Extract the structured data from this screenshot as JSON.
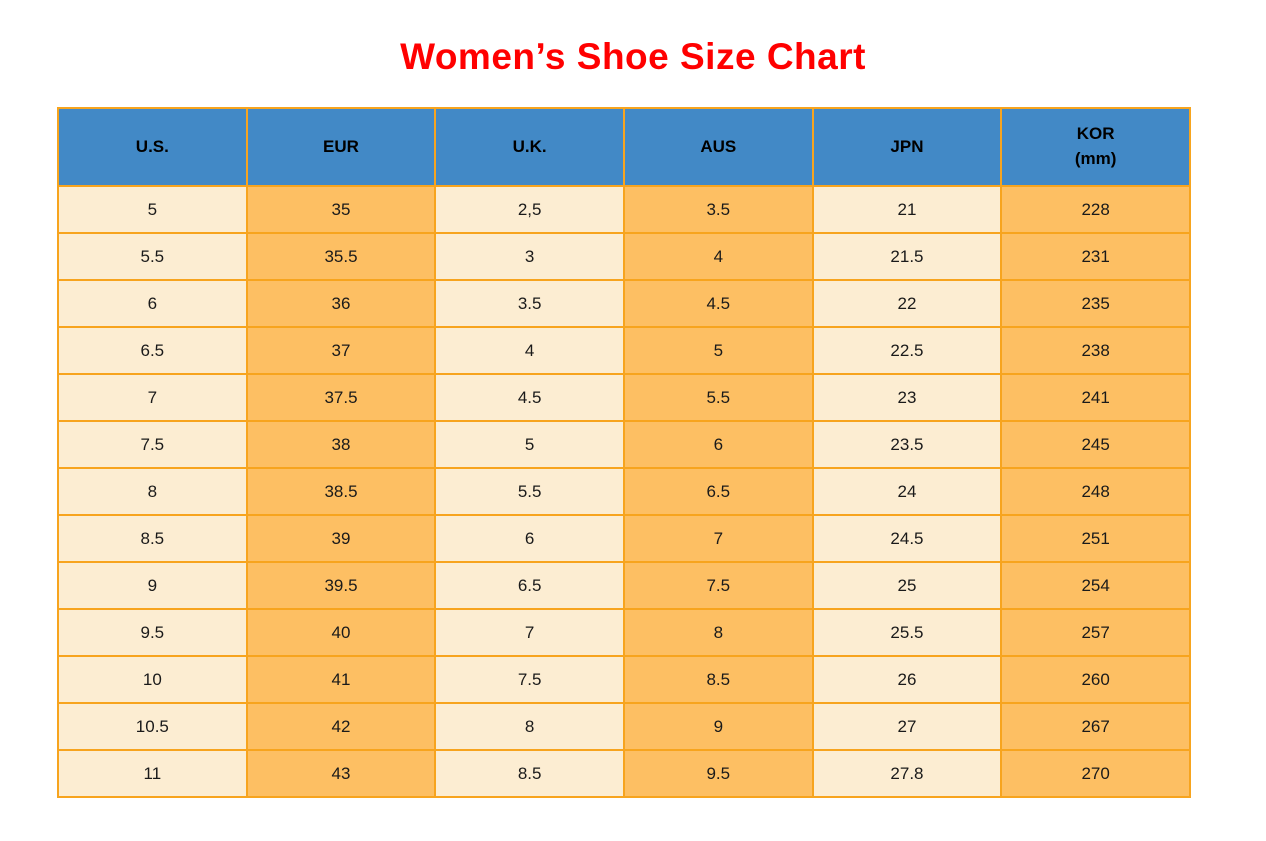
{
  "title": "Women’s Shoe Size Chart",
  "colors": {
    "title_red": "#FF0000",
    "header_blue": "#4289C6",
    "cell_cream": "#FCEDD2",
    "cell_orange": "#FDBF63",
    "border_orange": "#F7A41E",
    "text_dark": "#1A1A1A"
  },
  "table": {
    "headers": [
      {
        "label": "U.S."
      },
      {
        "label": "EUR"
      },
      {
        "label": "U.K."
      },
      {
        "label": "AUS"
      },
      {
        "label": "JPN"
      },
      {
        "label": "KOR",
        "sublabel": "(mm)"
      }
    ],
    "rows": [
      [
        "5",
        "35",
        "2,5",
        "3.5",
        "21",
        "228"
      ],
      [
        "5.5",
        "35.5",
        "3",
        "4",
        "21.5",
        "231"
      ],
      [
        "6",
        "36",
        "3.5",
        "4.5",
        "22",
        "235"
      ],
      [
        "6.5",
        "37",
        "4",
        "5",
        "22.5",
        "238"
      ],
      [
        "7",
        "37.5",
        "4.5",
        "5.5",
        "23",
        "241"
      ],
      [
        "7.5",
        "38",
        "5",
        "6",
        "23.5",
        "245"
      ],
      [
        "8",
        "38.5",
        "5.5",
        "6.5",
        "24",
        "248"
      ],
      [
        "8.5",
        "39",
        "6",
        "7",
        "24.5",
        "251"
      ],
      [
        "9",
        "39.5",
        "6.5",
        "7.5",
        "25",
        "254"
      ],
      [
        "9.5",
        "40",
        "7",
        "8",
        "25.5",
        "257"
      ],
      [
        "10",
        "41",
        "7.5",
        "8.5",
        "26",
        "260"
      ],
      [
        "10.5",
        "42",
        "8",
        "9",
        "27",
        "267"
      ],
      [
        "11",
        "43",
        "8.5",
        "9.5",
        "27.8",
        "270"
      ]
    ]
  },
  "chart_data": {
    "type": "table",
    "title": "Women’s Shoe Size Chart",
    "columns": [
      "U.S.",
      "EUR",
      "U.K.",
      "AUS",
      "JPN",
      "KOR (mm)"
    ],
    "rows": [
      [
        "5",
        "35",
        "2,5",
        "3.5",
        "21",
        "228"
      ],
      [
        "5.5",
        "35.5",
        "3",
        "4",
        "21.5",
        "231"
      ],
      [
        "6",
        "36",
        "3.5",
        "4.5",
        "22",
        "235"
      ],
      [
        "6.5",
        "37",
        "4",
        "5",
        "22.5",
        "238"
      ],
      [
        "7",
        "37.5",
        "4.5",
        "5.5",
        "23",
        "241"
      ],
      [
        "7.5",
        "38",
        "5",
        "6",
        "23.5",
        "245"
      ],
      [
        "8",
        "38.5",
        "5.5",
        "6.5",
        "24",
        "248"
      ],
      [
        "8.5",
        "39",
        "6",
        "7",
        "24.5",
        "251"
      ],
      [
        "9",
        "39.5",
        "6.5",
        "7.5",
        "25",
        "254"
      ],
      [
        "9.5",
        "40",
        "7",
        "8",
        "25.5",
        "257"
      ],
      [
        "10",
        "41",
        "7.5",
        "8.5",
        "26",
        "260"
      ],
      [
        "10.5",
        "42",
        "8",
        "9",
        "27",
        "267"
      ],
      [
        "11",
        "43",
        "8.5",
        "9.5",
        "27.8",
        "270"
      ]
    ],
    "layout_hints": {
      "column_fill_pattern": [
        "cream",
        "orange",
        "cream",
        "orange",
        "cream",
        "orange"
      ],
      "header_fill": "blue",
      "grid": "on"
    }
  }
}
